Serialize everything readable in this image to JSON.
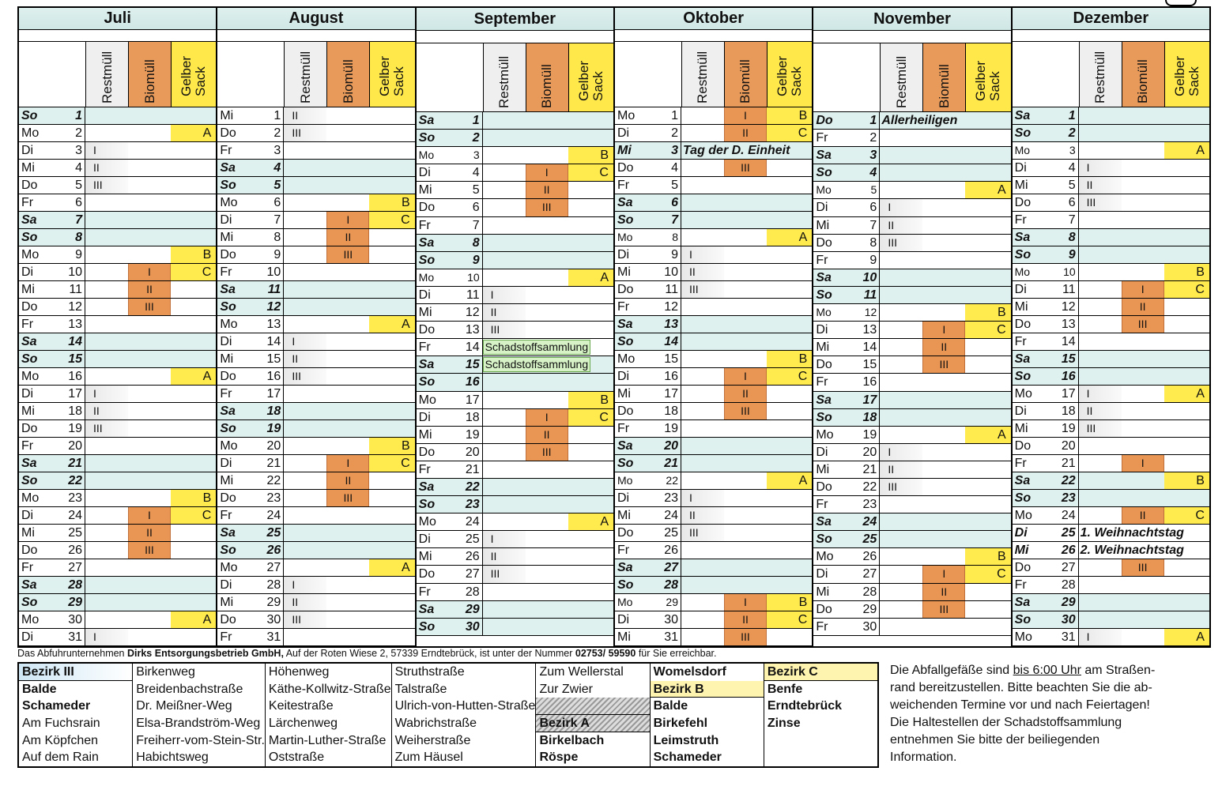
{
  "headers": {
    "day": "",
    "rest": "Restmüll",
    "bio": "Biomüll",
    "gelb": "Gelber\nSack"
  },
  "months": [
    {
      "name": "Juli",
      "days": [
        [
          "So",
          "1",
          "we"
        ],
        [
          "Mo",
          "2",
          "",
          "",
          "",
          "A"
        ],
        [
          "Di",
          "3",
          "",
          "I"
        ],
        [
          "Mi",
          "4",
          "",
          "II"
        ],
        [
          "Do",
          "5",
          "",
          "III"
        ],
        [
          "Fr",
          "6"
        ],
        [
          "Sa",
          "7",
          "we"
        ],
        [
          "So",
          "8",
          "we"
        ],
        [
          "Mo",
          "9",
          "",
          "",
          "",
          "B"
        ],
        [
          "Di",
          "10",
          "",
          "",
          "I",
          "C"
        ],
        [
          "Mi",
          "11",
          "",
          "",
          "II"
        ],
        [
          "Do",
          "12",
          "",
          "",
          "III"
        ],
        [
          "Fr",
          "13"
        ],
        [
          "Sa",
          "14",
          "we"
        ],
        [
          "So",
          "15",
          "we"
        ],
        [
          "Mo",
          "16",
          "",
          "",
          "",
          "A"
        ],
        [
          "Di",
          "17",
          "",
          "I"
        ],
        [
          "Mi",
          "18",
          "",
          "II"
        ],
        [
          "Do",
          "19",
          "",
          "III"
        ],
        [
          "Fr",
          "20"
        ],
        [
          "Sa",
          "21",
          "we"
        ],
        [
          "So",
          "22",
          "we"
        ],
        [
          "Mo",
          "23",
          "",
          "",
          "",
          "B"
        ],
        [
          "Di",
          "24",
          "",
          "",
          "I",
          "C"
        ],
        [
          "Mi",
          "25",
          "",
          "",
          "II"
        ],
        [
          "Do",
          "26",
          "",
          "",
          "III"
        ],
        [
          "Fr",
          "27"
        ],
        [
          "Sa",
          "28",
          "we"
        ],
        [
          "So",
          "29",
          "we"
        ],
        [
          "Mo",
          "30",
          "",
          "",
          "",
          "A"
        ],
        [
          "Di",
          "31",
          "",
          "I"
        ]
      ]
    },
    {
      "name": "August",
      "days": [
        [
          "Mi",
          "1",
          "",
          "II"
        ],
        [
          "Do",
          "2",
          "",
          "III"
        ],
        [
          "Fr",
          "3"
        ],
        [
          "Sa",
          "4",
          "we"
        ],
        [
          "So",
          "5",
          "we"
        ],
        [
          "Mo",
          "6",
          "",
          "",
          "",
          "B"
        ],
        [
          "Di",
          "7",
          "",
          "",
          "I",
          "C"
        ],
        [
          "Mi",
          "8",
          "",
          "",
          "II"
        ],
        [
          "Do",
          "9",
          "",
          "",
          "III"
        ],
        [
          "Fr",
          "10"
        ],
        [
          "Sa",
          "11",
          "we"
        ],
        [
          "So",
          "12",
          "we"
        ],
        [
          "Mo",
          "13",
          "",
          "",
          "",
          "A"
        ],
        [
          "Di",
          "14",
          "",
          "I"
        ],
        [
          "Mi",
          "15",
          "",
          "II"
        ],
        [
          "Do",
          "16",
          "",
          "III"
        ],
        [
          "Fr",
          "17"
        ],
        [
          "Sa",
          "18",
          "we"
        ],
        [
          "So",
          "19",
          "we"
        ],
        [
          "Mo",
          "20",
          "",
          "",
          "",
          "B"
        ],
        [
          "Di",
          "21",
          "",
          "",
          "I",
          "C"
        ],
        [
          "Mi",
          "22",
          "",
          "",
          "II"
        ],
        [
          "Do",
          "23",
          "",
          "",
          "III"
        ],
        [
          "Fr",
          "24"
        ],
        [
          "Sa",
          "25",
          "we"
        ],
        [
          "So",
          "26",
          "we"
        ],
        [
          "Mo",
          "27",
          "",
          "",
          "",
          "A"
        ],
        [
          "Di",
          "28",
          "",
          "I"
        ],
        [
          "Mi",
          "29",
          "",
          "II"
        ],
        [
          "Do",
          "30",
          "",
          "III"
        ],
        [
          "Fr",
          "31"
        ]
      ]
    },
    {
      "name": "September",
      "days": [
        [
          "Sa",
          "1",
          "we"
        ],
        [
          "So",
          "2",
          "we"
        ],
        [
          "Mo",
          "3",
          "s",
          "",
          "",
          "B"
        ],
        [
          "Di",
          "4",
          "",
          "",
          "I",
          "C"
        ],
        [
          "Mi",
          "5",
          "",
          "",
          "II"
        ],
        [
          "Do",
          "6",
          "",
          "",
          "III"
        ],
        [
          "Fr",
          "7"
        ],
        [
          "Sa",
          "8",
          "we"
        ],
        [
          "So",
          "9",
          "we"
        ],
        [
          "Mo",
          "10",
          "s",
          "",
          "",
          "A"
        ],
        [
          "Di",
          "11",
          "",
          "I"
        ],
        [
          "Mi",
          "12",
          "",
          "II"
        ],
        [
          "Do",
          "13",
          "",
          "III"
        ],
        [
          "Fr",
          "14",
          "",
          "",
          "",
          "",
          "",
          "Schadstoffsammlung"
        ],
        [
          "Sa",
          "15",
          "we",
          "",
          "",
          "",
          "",
          "Schadstoffsammlung"
        ],
        [
          "So",
          "16",
          "we"
        ],
        [
          "Mo",
          "17",
          "",
          "",
          "",
          "B"
        ],
        [
          "Di",
          "18",
          "",
          "",
          "I",
          "C"
        ],
        [
          "Mi",
          "19",
          "",
          "",
          "II"
        ],
        [
          "Do",
          "20",
          "",
          "",
          "III"
        ],
        [
          "Fr",
          "21"
        ],
        [
          "Sa",
          "22",
          "we"
        ],
        [
          "So",
          "23",
          "we"
        ],
        [
          "Mo",
          "24",
          "",
          "",
          "",
          "A"
        ],
        [
          "Di",
          "25",
          "",
          "I"
        ],
        [
          "Mi",
          "26",
          "",
          "II"
        ],
        [
          "Do",
          "27",
          "",
          "III"
        ],
        [
          "Fr",
          "28"
        ],
        [
          "Sa",
          "29",
          "we"
        ],
        [
          "So",
          "30",
          "we"
        ]
      ]
    },
    {
      "name": "Oktober",
      "days": [
        [
          "Mo",
          "1",
          "",
          "",
          "I",
          "B"
        ],
        [
          "Di",
          "2",
          "",
          "",
          "II",
          "C"
        ],
        [
          "Mi",
          "3",
          "we",
          "",
          "",
          "",
          "Tag der D. Einheit"
        ],
        [
          "Do",
          "4",
          "",
          "",
          "III"
        ],
        [
          "Fr",
          "5"
        ],
        [
          "Sa",
          "6",
          "we"
        ],
        [
          "So",
          "7",
          "we"
        ],
        [
          "Mo",
          "8",
          "s",
          "",
          "",
          "A"
        ],
        [
          "Di",
          "9",
          "",
          "I"
        ],
        [
          "Mi",
          "10",
          "",
          "II"
        ],
        [
          "Do",
          "11",
          "",
          "III"
        ],
        [
          "Fr",
          "12"
        ],
        [
          "Sa",
          "13",
          "we"
        ],
        [
          "So",
          "14",
          "we"
        ],
        [
          "Mo",
          "15",
          "",
          "",
          "",
          "B"
        ],
        [
          "Di",
          "16",
          "",
          "",
          "I",
          "C"
        ],
        [
          "Mi",
          "17",
          "",
          "",
          "II"
        ],
        [
          "Do",
          "18",
          "",
          "",
          "III"
        ],
        [
          "Fr",
          "19"
        ],
        [
          "Sa",
          "20",
          "we"
        ],
        [
          "So",
          "21",
          "we"
        ],
        [
          "Mo",
          "22",
          "s",
          "",
          "",
          "A"
        ],
        [
          "Di",
          "23",
          "",
          "I"
        ],
        [
          "Mi",
          "24",
          "",
          "II"
        ],
        [
          "Do",
          "25",
          "",
          "III"
        ],
        [
          "Fr",
          "26"
        ],
        [
          "Sa",
          "27",
          "we"
        ],
        [
          "So",
          "28",
          "we"
        ],
        [
          "Mo",
          "29",
          "s",
          "",
          "I",
          "B"
        ],
        [
          "Di",
          "30",
          "",
          "",
          "II",
          "C"
        ],
        [
          "Mi",
          "31",
          "",
          "",
          "III"
        ]
      ]
    },
    {
      "name": "November",
      "days": [
        [
          "Do",
          "1",
          "we",
          "",
          "",
          "",
          "Allerheiligen"
        ],
        [
          "Fr",
          "2"
        ],
        [
          "Sa",
          "3",
          "we"
        ],
        [
          "So",
          "4",
          "we"
        ],
        [
          "Mo",
          "5",
          "s",
          "",
          "",
          "A"
        ],
        [
          "Di",
          "6",
          "",
          "I"
        ],
        [
          "Mi",
          "7",
          "",
          "II"
        ],
        [
          "Do",
          "8",
          "",
          "III"
        ],
        [
          "Fr",
          "9"
        ],
        [
          "Sa",
          "10",
          "we"
        ],
        [
          "So",
          "11",
          "we"
        ],
        [
          "Mo",
          "12",
          "s",
          "",
          "",
          "B"
        ],
        [
          "Di",
          "13",
          "",
          "",
          "I",
          "C"
        ],
        [
          "Mi",
          "14",
          "",
          "",
          "II"
        ],
        [
          "Do",
          "15",
          "",
          "",
          "III"
        ],
        [
          "Fr",
          "16"
        ],
        [
          "Sa",
          "17",
          "we"
        ],
        [
          "So",
          "18",
          "we"
        ],
        [
          "Mo",
          "19",
          "",
          "",
          "",
          "A"
        ],
        [
          "Di",
          "20",
          "",
          "I"
        ],
        [
          "Mi",
          "21",
          "",
          "II"
        ],
        [
          "Do",
          "22",
          "",
          "III"
        ],
        [
          "Fr",
          "23"
        ],
        [
          "Sa",
          "24",
          "we"
        ],
        [
          "So",
          "25",
          "we"
        ],
        [
          "Mo",
          "26",
          "",
          "",
          "",
          "B"
        ],
        [
          "Di",
          "27",
          "",
          "",
          "I",
          "C"
        ],
        [
          "Mi",
          "28",
          "",
          "",
          "II"
        ],
        [
          "Do",
          "29",
          "",
          "",
          "III"
        ],
        [
          "Fr",
          "30"
        ]
      ]
    },
    {
      "name": "Dezember",
      "days": [
        [
          "Sa",
          "1",
          "we"
        ],
        [
          "So",
          "2",
          "we"
        ],
        [
          "Mo",
          "3",
          "s",
          "",
          "",
          "A"
        ],
        [
          "Di",
          "4",
          "",
          "I"
        ],
        [
          "Mi",
          "5",
          "",
          "II"
        ],
        [
          "Do",
          "6",
          "",
          "III"
        ],
        [
          "Fr",
          "7"
        ],
        [
          "Sa",
          "8",
          "we"
        ],
        [
          "So",
          "9",
          "we"
        ],
        [
          "Mo",
          "10",
          "s",
          "",
          "",
          "B"
        ],
        [
          "Di",
          "11",
          "",
          "",
          "I",
          "C"
        ],
        [
          "Mi",
          "12",
          "",
          "",
          "II"
        ],
        [
          "Do",
          "13",
          "",
          "",
          "III"
        ],
        [
          "Fr",
          "14"
        ],
        [
          "Sa",
          "15",
          "we"
        ],
        [
          "So",
          "16",
          "we"
        ],
        [
          "Mo",
          "17",
          "",
          "I",
          "",
          "A"
        ],
        [
          "Di",
          "18",
          "",
          "II"
        ],
        [
          "Mi",
          "19",
          "",
          "III"
        ],
        [
          "Do",
          "20"
        ],
        [
          "Fr",
          "21",
          "",
          "",
          "I"
        ],
        [
          "Sa",
          "22",
          "we",
          "",
          "",
          "B"
        ],
        [
          "So",
          "23",
          "we"
        ],
        [
          "Mo",
          "24",
          "",
          "",
          "II",
          "C"
        ],
        [
          "Di",
          "25",
          "hol",
          "",
          "",
          "",
          "1. Weihnachtstag"
        ],
        [
          "Mi",
          "26",
          "hol",
          "",
          "",
          "",
          "2. Weihnachtstag"
        ],
        [
          "Do",
          "27",
          "",
          "",
          "III"
        ],
        [
          "Fr",
          "28"
        ],
        [
          "Sa",
          "29",
          "we"
        ],
        [
          "So",
          "30",
          "we"
        ],
        [
          "Mo",
          "31",
          "",
          "I",
          "",
          "A"
        ]
      ]
    }
  ],
  "footer": {
    "pre": "Das Abfuhrunternehmen ",
    "company": "Dirks Entsorgungsbetrieb GmbH,",
    "mid": " Auf der Roten Wiese 2, 57339 Erndtebrück, ist unter der Nummer ",
    "phone": "02753/ 59590",
    "post": " für Sie erreichbar."
  },
  "legend": {
    "col1": [
      "Bezirk III",
      "Balde",
      "Schameder",
      "Am Fuchsrain",
      "Am Köpfchen",
      "Auf dem Rain"
    ],
    "col2": [
      "Birkenweg",
      "Breidenbachstraße",
      "Dr. Meißner-Weg",
      "Elsa-Brandström-Weg",
      "Freiherr-vom-Stein-Str.",
      "Habichtsweg"
    ],
    "col3": [
      "Höhenweg",
      "Käthe-Kollwitz-Straße",
      "Keitestraße",
      "Lärchenweg",
      "Martin-Luther-Straße",
      "Oststraße"
    ],
    "col4": [
      "Struthstraße",
      "Talstraße",
      "Ulrich-von-Hutten-Straße",
      "Wabrichstraße",
      "Weiherstraße",
      "Zum Häusel"
    ],
    "col5": [
      "Zum Wellerstal",
      "Zur Zwier",
      "",
      "Bezirk A",
      "Birkelbach",
      "Röspe"
    ],
    "col6": [
      "Womelsdorf",
      "Bezirk B",
      "Balde",
      "Birkefehl",
      "Leimstruth",
      "Schameder"
    ],
    "col7": [
      "Bezirk C",
      "Benfe",
      "Erndtebrück",
      "Zinse",
      "",
      ""
    ]
  },
  "info": {
    "l1a": "Die Abfallgefäße sind ",
    "l1u": "bis 6:00 Uhr",
    "l1b": " am Straßen-",
    "l2": "rand bereitzustellen. Bitte beachten Sie die ab-",
    "l3": "weichenden Termine vor und nach Feiertagen!",
    "l4": "Die Haltestellen der Schadstoffsammlung",
    "l5": "entnehmen Sie bitte der beiliegenden",
    "l6": "Information."
  }
}
